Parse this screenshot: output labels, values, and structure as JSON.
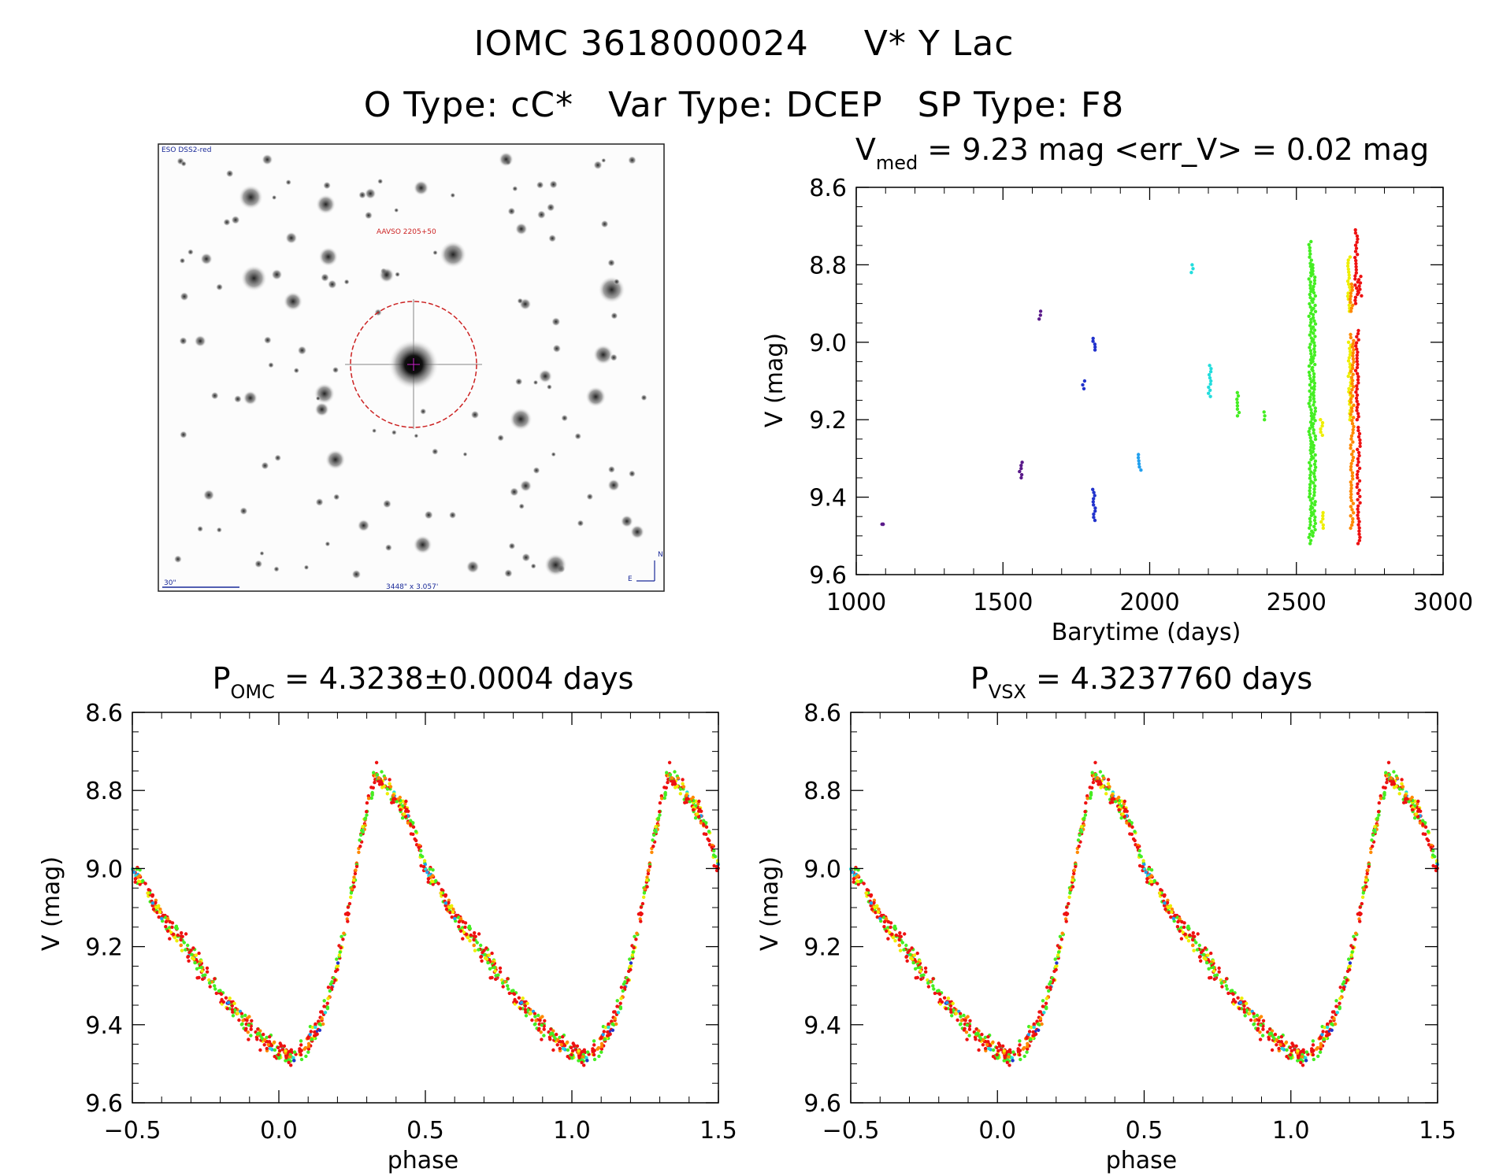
{
  "header": {
    "object_id": "IOMC 3618000024",
    "star_name": "V* Y Lac",
    "otype_label": "O Type: cC*",
    "vartype_label": "Var Type: DCEP",
    "sptype_label": "SP Type: F8"
  },
  "finder": {
    "survey_label": "ESO DSS2-red",
    "target_label": "AAVSO 2205+50",
    "scale_label": "30\"",
    "coords_label": "3448\" x 3.057'",
    "north_label": "N",
    "east_label": "E"
  },
  "colors": {
    "violet": "#5a1a8a",
    "blue": "#2233cc",
    "lightblue": "#22a0ee",
    "cyan": "#22dddd",
    "green": "#44ee22",
    "yellow": "#eeee00",
    "orange": "#ff8800",
    "red": "#ee1111",
    "finder_circle": "#cc2222"
  },
  "chart_data": [
    {
      "type": "scatter",
      "name": "lightcurve",
      "title_main": "V",
      "title_sub": "med",
      "title_rest": " = 9.23 mag <err_V> = 0.02 mag",
      "xlabel": "Barytime (days)",
      "ylabel": "V (mag)",
      "xlim": [
        1000,
        3000
      ],
      "ylim": [
        9.6,
        8.6
      ],
      "xticks": [
        1000,
        1500,
        2000,
        2500,
        3000
      ],
      "xtick_labels": [
        "1000",
        "1500",
        "2000",
        "2500",
        "3000"
      ],
      "yticks": [
        8.6,
        8.8,
        9.0,
        9.2,
        9.4,
        9.6
      ],
      "ytick_labels": [
        "8.6",
        "8.8",
        "9.0",
        "9.2",
        "9.4",
        "9.6"
      ],
      "groups": [
        {
          "x": 1090,
          "y": [
            9.47
          ],
          "color": "violet"
        },
        {
          "x": 1560,
          "y": [
            9.31,
            9.35
          ],
          "color": "violet"
        },
        {
          "x": 1625,
          "y": [
            8.92,
            8.94
          ],
          "color": "violet"
        },
        {
          "x": 1775,
          "y": [
            9.1,
            9.12
          ],
          "color": "blue"
        },
        {
          "x": 1810,
          "y": [
            8.99,
            9.02
          ],
          "color": "blue"
        },
        {
          "x": 1810,
          "y": [
            9.38,
            9.46
          ],
          "color": "blue"
        },
        {
          "x": 1965,
          "y": [
            9.29,
            9.33
          ],
          "color": "lightblue"
        },
        {
          "x": 2145,
          "y": [
            8.8,
            8.82
          ],
          "color": "cyan"
        },
        {
          "x": 2205,
          "y": [
            9.06,
            9.14
          ],
          "color": "cyan"
        },
        {
          "x": 2300,
          "y": [
            9.13,
            9.19
          ],
          "color": "green"
        },
        {
          "x": 2395,
          "y": [
            9.18,
            9.2
          ],
          "color": "green"
        },
        {
          "x": 2548,
          "y": [
            8.74,
            9.52
          ],
          "color": "green"
        },
        {
          "x": 2560,
          "y": [
            8.8,
            9.5
          ],
          "color": "green"
        },
        {
          "x": 2585,
          "y": [
            9.2,
            9.24
          ],
          "color": "yellow"
        },
        {
          "x": 2588,
          "y": [
            9.44,
            9.48
          ],
          "color": "yellow"
        },
        {
          "x": 2680,
          "y": [
            8.78,
            8.92
          ],
          "color": "yellow"
        },
        {
          "x": 2682,
          "y": [
            9.0,
            9.2
          ],
          "color": "yellow"
        },
        {
          "x": 2688,
          "y": [
            8.85,
            8.92
          ],
          "color": "orange"
        },
        {
          "x": 2690,
          "y": [
            8.98,
            9.48
          ],
          "color": "orange"
        },
        {
          "x": 2705,
          "y": [
            8.71,
            8.9
          ],
          "color": "red"
        },
        {
          "x": 2707,
          "y": [
            8.97,
            9.2
          ],
          "color": "red"
        },
        {
          "x": 2712,
          "y": [
            9.22,
            9.52
          ],
          "color": "red"
        },
        {
          "x": 2717,
          "y": [
            8.83,
            8.88
          ],
          "color": "red"
        }
      ]
    },
    {
      "type": "scatter",
      "name": "phase-omc",
      "title_main": "P",
      "title_sub": "OMC",
      "title_rest": " = 4.3238±0.0004 days",
      "xlabel": "phase",
      "ylabel": "V (mag)",
      "period_days": 4.3238,
      "xlim": [
        -0.5,
        1.5
      ],
      "ylim": [
        9.6,
        8.6
      ],
      "xticks": [
        -0.5,
        0.0,
        0.5,
        1.0,
        1.5
      ],
      "xtick_labels": [
        "−0.5",
        "0.0",
        "0.5",
        "1.0",
        "1.5"
      ],
      "yticks": [
        8.6,
        8.8,
        9.0,
        9.2,
        9.4,
        9.6
      ],
      "ytick_labels": [
        "8.6",
        "8.8",
        "9.0",
        "9.2",
        "9.4",
        "9.6"
      ],
      "template_curve": {
        "phase": [
          0.0,
          0.05,
          0.1,
          0.15,
          0.2,
          0.25,
          0.3,
          0.33,
          0.35,
          0.4,
          0.45,
          0.5,
          0.6,
          0.7,
          0.8,
          0.9,
          1.0
        ],
        "mag": [
          9.47,
          9.48,
          9.45,
          9.38,
          9.25,
          9.05,
          8.85,
          8.76,
          8.77,
          8.82,
          8.88,
          9.0,
          9.12,
          9.22,
          9.32,
          9.41,
          9.47
        ]
      }
    },
    {
      "type": "scatter",
      "name": "phase-vsx",
      "title_main": "P",
      "title_sub": "VSX",
      "title_rest": " = 4.3237760 days",
      "xlabel": "phase",
      "ylabel": "V (mag)",
      "period_days": 4.323776,
      "xlim": [
        -0.5,
        1.5
      ],
      "ylim": [
        9.6,
        8.6
      ],
      "xticks": [
        -0.5,
        0.0,
        0.5,
        1.0,
        1.5
      ],
      "xtick_labels": [
        "−0.5",
        "0.0",
        "0.5",
        "1.0",
        "1.5"
      ],
      "yticks": [
        8.6,
        8.8,
        9.0,
        9.2,
        9.4,
        9.6
      ],
      "ytick_labels": [
        "8.6",
        "8.8",
        "9.0",
        "9.2",
        "9.4",
        "9.6"
      ],
      "template_curve": {
        "phase": [
          0.0,
          0.05,
          0.1,
          0.15,
          0.2,
          0.25,
          0.3,
          0.33,
          0.35,
          0.4,
          0.45,
          0.5,
          0.6,
          0.7,
          0.8,
          0.9,
          1.0
        ],
        "mag": [
          9.47,
          9.48,
          9.45,
          9.38,
          9.25,
          9.05,
          8.85,
          8.76,
          8.77,
          8.82,
          8.88,
          9.0,
          9.12,
          9.22,
          9.32,
          9.41,
          9.47
        ]
      }
    }
  ]
}
